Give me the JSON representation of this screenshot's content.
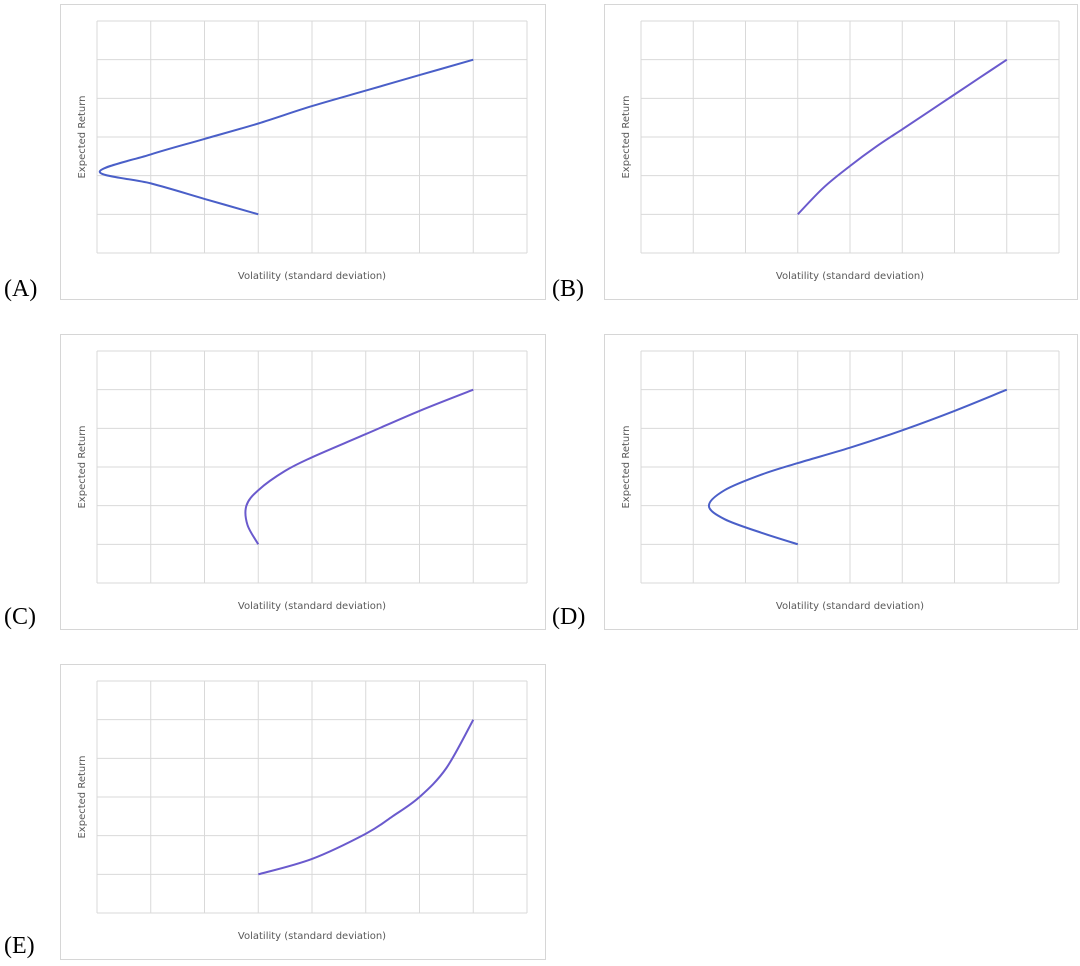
{
  "chart_data": [
    {
      "option": "(A)",
      "type": "line",
      "xlabel": "Volatility (standard deviation)",
      "ylabel": "Expected Return",
      "xlim": [
        0,
        8
      ],
      "ylim": [
        0,
        6
      ],
      "grid": true,
      "series": [
        {
          "color": "#4a5fc8",
          "x": [
            3.0,
            2.0,
            1.0,
            0.05,
            1.0,
            2.0,
            3.0,
            4.0,
            5.0,
            6.0,
            7.0
          ],
          "y": [
            1.0,
            1.4,
            1.8,
            2.1,
            2.55,
            2.95,
            3.35,
            3.8,
            4.2,
            4.6,
            5.0
          ]
        }
      ]
    },
    {
      "option": "(B)",
      "type": "line",
      "xlabel": "Volatility (standard deviation)",
      "ylabel": "Expected Return",
      "xlim": [
        0,
        8
      ],
      "ylim": [
        0,
        6
      ],
      "grid": true,
      "series": [
        {
          "color": "#6a5acd",
          "x": [
            3.0,
            3.5,
            4.0,
            4.5,
            5.0,
            5.5,
            6.0,
            6.5,
            7.0
          ],
          "y": [
            1.0,
            1.7,
            2.25,
            2.75,
            3.2,
            3.65,
            4.1,
            4.55,
            5.0
          ]
        }
      ]
    },
    {
      "option": "(C)",
      "type": "line",
      "xlabel": "Volatility (standard deviation)",
      "ylabel": "Expected Return",
      "xlim": [
        0,
        8
      ],
      "ylim": [
        0,
        6
      ],
      "grid": true,
      "series": [
        {
          "color": "#6a5acd",
          "x": [
            3.0,
            2.8,
            2.78,
            3.0,
            3.5,
            4.0,
            5.0,
            6.0,
            7.0
          ],
          "y": [
            1.0,
            1.5,
            2.0,
            2.4,
            2.9,
            3.25,
            3.85,
            4.45,
            5.0
          ]
        }
      ]
    },
    {
      "option": "(D)",
      "type": "line",
      "xlabel": "Volatility (standard deviation)",
      "ylabel": "Expected Return",
      "xlim": [
        0,
        8
      ],
      "ylim": [
        0,
        6
      ],
      "grid": true,
      "series": [
        {
          "color": "#4a5fc8",
          "x": [
            3.0,
            2.3,
            1.6,
            1.3,
            1.6,
            2.3,
            3.0,
            4.0,
            5.0,
            6.0,
            7.0
          ],
          "y": [
            1.0,
            1.3,
            1.65,
            2.0,
            2.4,
            2.8,
            3.1,
            3.5,
            3.95,
            4.45,
            5.0
          ]
        }
      ]
    },
    {
      "option": "(E)",
      "type": "line",
      "xlabel": "Volatility (standard deviation)",
      "ylabel": "Expected Return",
      "xlim": [
        0,
        8
      ],
      "ylim": [
        0,
        6
      ],
      "grid": true,
      "series": [
        {
          "color": "#6a5acd",
          "x": [
            3.0,
            4.0,
            5.0,
            5.5,
            6.0,
            6.5,
            7.0
          ],
          "y": [
            1.0,
            1.4,
            2.05,
            2.5,
            3.0,
            3.75,
            5.0
          ]
        }
      ]
    }
  ]
}
